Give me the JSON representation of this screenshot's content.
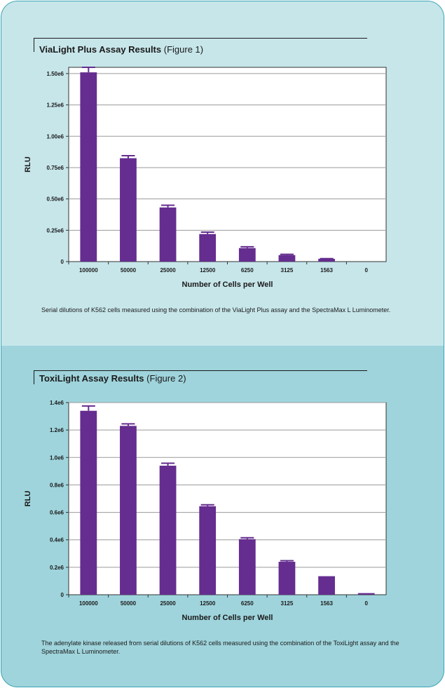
{
  "colors": {
    "bar": "#652d8f",
    "panel_top": "#c7e6ea",
    "panel_bottom": "#9fd4dc",
    "border": "#3aa4b3"
  },
  "figure1": {
    "title_bold": "ViaLight Plus Assay Results",
    "title_fig": "(Figure 1)",
    "caption": "Serial dilutions of K562 cells measured using the combination of the ViaLight Plus assay and the SpectraMax L Luminometer."
  },
  "figure2": {
    "title_bold": "ToxiLight Assay Results",
    "title_fig": "(Figure 2)",
    "caption": "The adenylate kinase released from serial dilutions of K562 cells measured using the combination of the ToxiLight assay and the SpectraMax L Luminometer."
  },
  "chart_data": [
    {
      "type": "bar",
      "categories": [
        "100000",
        "50000",
        "25000",
        "12500",
        "6250",
        "3125",
        "1563",
        "0"
      ],
      "values": [
        1510000,
        825000,
        432000,
        220000,
        108000,
        52000,
        22000,
        0
      ],
      "error": [
        40000,
        20000,
        18000,
        15000,
        10000,
        6000,
        2000,
        0
      ],
      "xlabel": "Number of Cells per Well",
      "ylabel": "RLU",
      "ylim": [
        0,
        1550000
      ],
      "yticks": [
        0,
        250000,
        500000,
        750000,
        1000000,
        1250000,
        1500000
      ],
      "ytick_labels": [
        "0",
        "0.25e6",
        "0.50e6",
        "0.75e6",
        "1.00e6",
        "1.25e6",
        "1.50e6"
      ],
      "grid": true
    },
    {
      "type": "bar",
      "categories": [
        "100000",
        "50000",
        "25000",
        "12500",
        "6250",
        "3125",
        "1563",
        "0"
      ],
      "values": [
        1340000,
        1230000,
        940000,
        645000,
        405000,
        240000,
        135000,
        12000
      ],
      "error": [
        35000,
        15000,
        18000,
        10000,
        10000,
        8000,
        0,
        0
      ],
      "xlabel": "Number of Cells per Well",
      "ylabel": "RLU",
      "ylim": [
        0,
        1400000
      ],
      "yticks": [
        0,
        200000,
        400000,
        600000,
        800000,
        1000000,
        1200000,
        1400000
      ],
      "ytick_labels": [
        "0",
        "0.2e6",
        "0.4e6",
        "0.6e6",
        "0.8e6",
        "1.0e6",
        "1.2e6",
        "1.4e6"
      ],
      "grid": true
    }
  ]
}
